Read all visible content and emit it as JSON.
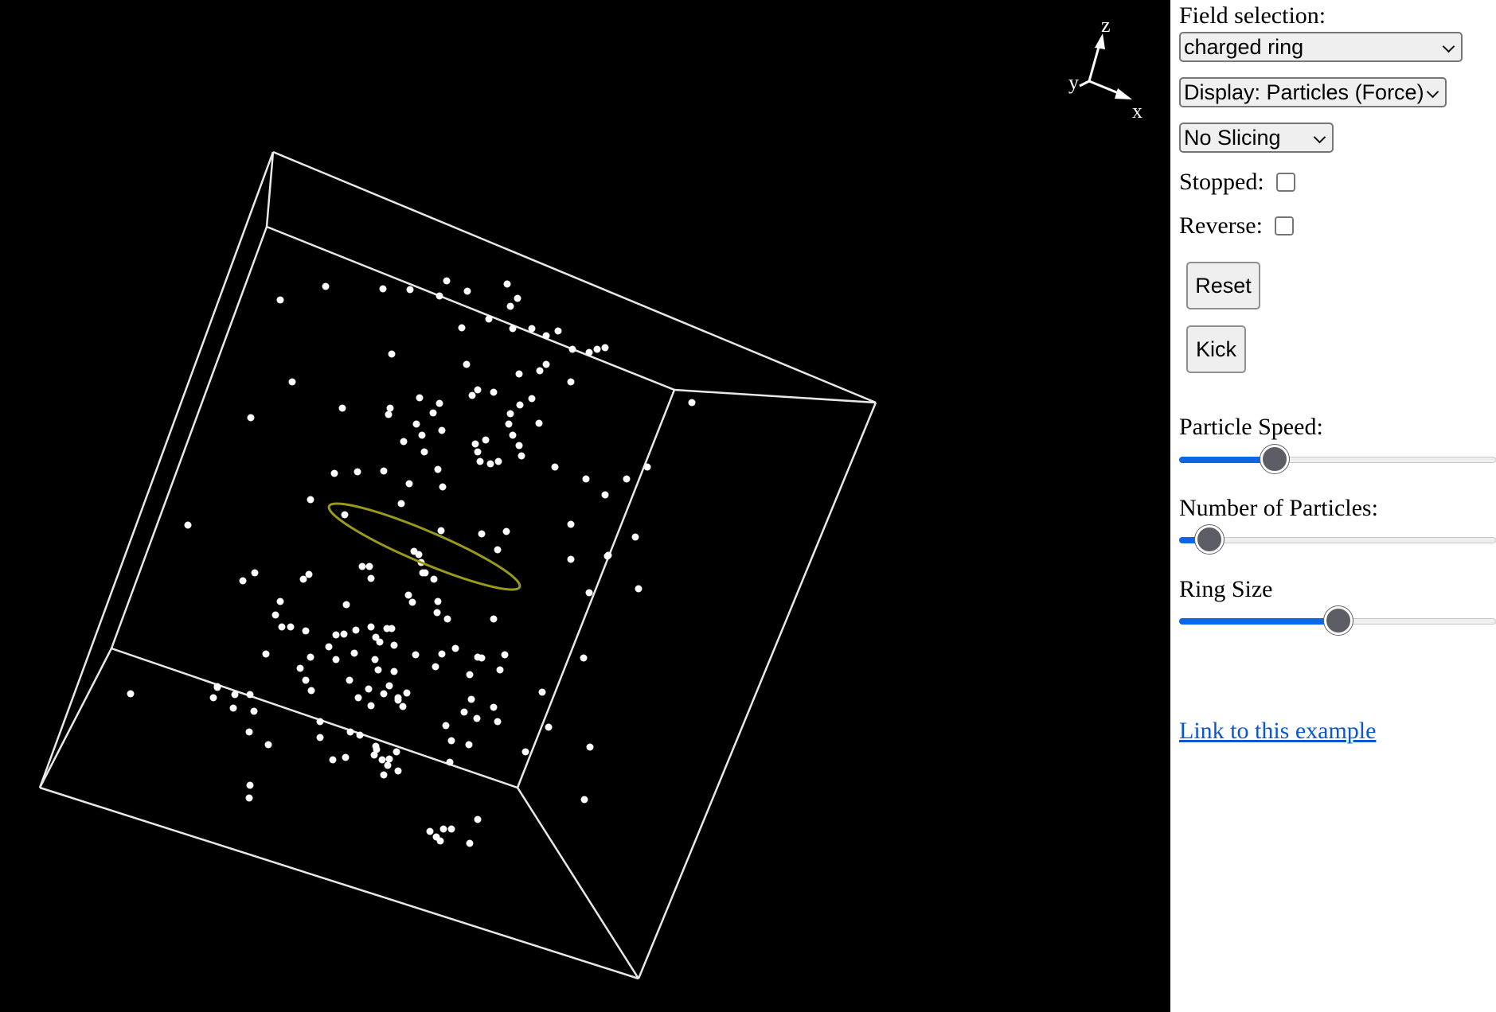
{
  "axes_gizmo": {
    "x_label": "x",
    "y_label": "y",
    "z_label": "z"
  },
  "colors": {
    "background": "#000000",
    "box_edges": "#e8e8e8",
    "particles": "#ffffff",
    "ring": "#9a9a1a"
  },
  "controls": {
    "field_selection_label": "Field selection:",
    "field_selection_value": "charged ring",
    "display_value": "Display: Particles (Force)",
    "slicing_value": "No Slicing",
    "stopped_label": "Stopped:",
    "stopped_checked": false,
    "reverse_label": "Reverse:",
    "reverse_checked": false,
    "reset_button": "Reset",
    "kick_button": "Kick",
    "particle_speed_label": "Particle Speed:",
    "particle_speed_level": 0.3,
    "num_particles_label": "Number of Particles:",
    "num_particles_level": 0.1,
    "ring_size_label": "Ring Size",
    "ring_size_level": 0.5,
    "link_text": "Link to this example"
  }
}
